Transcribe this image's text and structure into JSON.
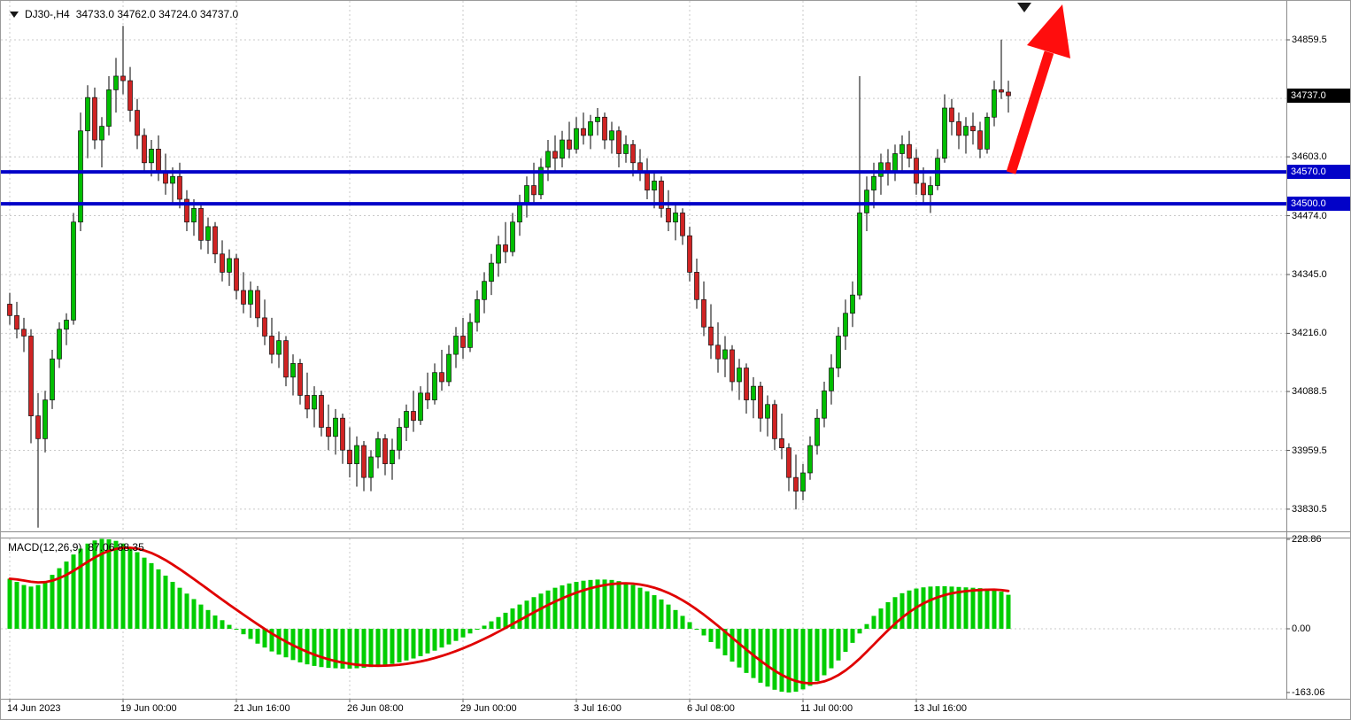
{
  "header": {
    "symbol_period": "DJ30-,H4",
    "ohlc_text": "34733.0 34762.0 34724.0 34737.0"
  },
  "indicator_label": {
    "name": "MACD(12,26,9)",
    "values": "87.06 88.35"
  },
  "colors": {
    "grid": "#C9C9C9",
    "separator": "#8A8A8A",
    "arrow": "#FF0D0D",
    "badge_current_bg": "#000000",
    "level_badge_bg": "#0202C8",
    "axis_text": "#000000"
  },
  "price_axis": {
    "labels": [
      {
        "text": "34859.5",
        "value": 34859.5
      },
      {
        "text": "34603.0",
        "value": 34603.0
      },
      {
        "text": "34474.0",
        "value": 34474.0
      },
      {
        "text": "34345.0",
        "value": 34345.0
      },
      {
        "text": "34216.0",
        "value": 34216.0
      },
      {
        "text": "34088.5",
        "value": 34088.5
      },
      {
        "text": "33959.5",
        "value": 33959.5
      },
      {
        "text": "33830.5",
        "value": 33830.5
      }
    ],
    "badge_current": {
      "text": "34737.0",
      "value": 34737.0
    },
    "level_badges": [
      {
        "text": "34570.0",
        "value": 34570.0
      },
      {
        "text": "34500.0",
        "value": 34500.0
      }
    ]
  },
  "macd_axis": {
    "labels": [
      {
        "text": "228.86",
        "value": 228.86
      },
      {
        "text": "0.00",
        "value": 0
      },
      {
        "text": "-163.06",
        "value": -163.06
      }
    ]
  },
  "time_axis": {
    "labels": [
      {
        "text": "14 Jun 2023",
        "bar": 0
      },
      {
        "text": "19 Jun 00:00",
        "bar": 16
      },
      {
        "text": "21 Jun 16:00",
        "bar": 32
      },
      {
        "text": "26 Jun 08:00",
        "bar": 48
      },
      {
        "text": "29 Jun 00:00",
        "bar": 64
      },
      {
        "text": "3 Jul 16:00",
        "bar": 80
      },
      {
        "text": "6 Jul 08:00",
        "bar": 96
      },
      {
        "text": "11 Jul 00:00",
        "bar": 112
      },
      {
        "text": "13 Jul 16:00",
        "bar": 128
      }
    ]
  },
  "chart_data": [
    {
      "type": "candlestick",
      "symbol": "DJ30-",
      "timeframe": "H4",
      "ohlc_current": {
        "open": 34733.0,
        "high": 34762.0,
        "low": 34724.0,
        "close": 34737.0
      },
      "ylim": [
        33770,
        34910
      ],
      "grid": true,
      "y_tick_values": [
        34859.5,
        34731.0,
        34603.0,
        34474.0,
        34345.0,
        34216.0,
        34088.5,
        33959.5,
        33830.5
      ],
      "levels": [
        {
          "value": 34570.0,
          "color": "#0202C8"
        },
        {
          "value": 34500.0,
          "color": "#0202C8"
        }
      ],
      "annotations": [
        {
          "type": "arrow",
          "direction": "up",
          "color": "#FF0D0D",
          "anchor_price": 34570.0
        }
      ],
      "colors": {
        "up": "#00BE00",
        "down": "#D02323",
        "wick": "#000000"
      },
      "candles": [
        [
          34280,
          34305,
          34235,
          34255
        ],
        [
          34255,
          34285,
          34205,
          34225
        ],
        [
          34225,
          34250,
          34175,
          34210
        ],
        [
          34210,
          34225,
          33975,
          34035
        ],
        [
          34035,
          34085,
          33790,
          33985
        ],
        [
          33985,
          34090,
          33955,
          34070
        ],
        [
          34070,
          34180,
          34050,
          34160
        ],
        [
          34160,
          34240,
          34140,
          34225
        ],
        [
          34225,
          34260,
          34190,
          34245
        ],
        [
          34245,
          34480,
          34235,
          34460
        ],
        [
          34460,
          34700,
          34440,
          34660
        ],
        [
          34660,
          34760,
          34600,
          34733
        ],
        [
          34733,
          34755,
          34620,
          34640
        ],
        [
          34640,
          34690,
          34580,
          34670
        ],
        [
          34670,
          34780,
          34650,
          34750
        ],
        [
          34750,
          34820,
          34700,
          34780
        ],
        [
          34780,
          34890,
          34740,
          34770
        ],
        [
          34770,
          34800,
          34680,
          34705
        ],
        [
          34705,
          34730,
          34620,
          34650
        ],
        [
          34650,
          34665,
          34570,
          34590
        ],
        [
          34590,
          34640,
          34560,
          34620
        ],
        [
          34620,
          34650,
          34550,
          34570
        ],
        [
          34570,
          34610,
          34520,
          34545
        ],
        [
          34545,
          34580,
          34500,
          34560
        ],
        [
          34560,
          34590,
          34490,
          34510
        ],
        [
          34510,
          34530,
          34440,
          34460
        ],
        [
          34460,
          34510,
          34430,
          34490
        ],
        [
          34490,
          34500,
          34400,
          34420
        ],
        [
          34420,
          34470,
          34390,
          34450
        ],
        [
          34450,
          34460,
          34370,
          34390
        ],
        [
          34390,
          34420,
          34330,
          34350
        ],
        [
          34350,
          34400,
          34320,
          34380
        ],
        [
          34380,
          34390,
          34290,
          34310
        ],
        [
          34310,
          34350,
          34260,
          34280
        ],
        [
          34280,
          34330,
          34250,
          34310
        ],
        [
          34310,
          34320,
          34230,
          34250
        ],
        [
          34250,
          34290,
          34190,
          34210
        ],
        [
          34210,
          34250,
          34150,
          34170
        ],
        [
          34170,
          34220,
          34140,
          34200
        ],
        [
          34200,
          34210,
          34100,
          34120
        ],
        [
          34120,
          34170,
          34080,
          34150
        ],
        [
          34150,
          34160,
          34060,
          34080
        ],
        [
          34080,
          34130,
          34030,
          34050
        ],
        [
          34050,
          34100,
          34010,
          34080
        ],
        [
          34080,
          34090,
          33990,
          34010
        ],
        [
          34010,
          34060,
          33960,
          33990
        ],
        [
          33990,
          34050,
          33950,
          34030
        ],
        [
          34030,
          34040,
          33930,
          33960
        ],
        [
          33960,
          34010,
          33900,
          33930
        ],
        [
          33930,
          33990,
          33880,
          33970
        ],
        [
          33970,
          33980,
          33870,
          33900
        ],
        [
          33900,
          33960,
          33870,
          33945
        ],
        [
          33945,
          34000,
          33920,
          33985
        ],
        [
          33985,
          33995,
          33905,
          33930
        ],
        [
          33930,
          33985,
          33895,
          33960
        ],
        [
          33960,
          34030,
          33940,
          34010
        ],
        [
          34010,
          34060,
          33980,
          34045
        ],
        [
          34045,
          34090,
          34000,
          34025
        ],
        [
          34025,
          34100,
          34015,
          34085
        ],
        [
          34085,
          34130,
          34050,
          34070
        ],
        [
          34070,
          34150,
          34060,
          34130
        ],
        [
          34130,
          34180,
          34090,
          34110
        ],
        [
          34110,
          34190,
          34100,
          34170
        ],
        [
          34170,
          34230,
          34140,
          34210
        ],
        [
          34210,
          34250,
          34160,
          34185
        ],
        [
          34185,
          34260,
          34175,
          34240
        ],
        [
          34240,
          34310,
          34220,
          34290
        ],
        [
          34290,
          34350,
          34260,
          34330
        ],
        [
          34330,
          34390,
          34300,
          34370
        ],
        [
          34370,
          34430,
          34340,
          34410
        ],
        [
          34410,
          34460,
          34370,
          34395
        ],
        [
          34395,
          34480,
          34385,
          34460
        ],
        [
          34460,
          34520,
          34430,
          34500
        ],
        [
          34500,
          34560,
          34470,
          34540
        ],
        [
          34540,
          34590,
          34500,
          34520
        ],
        [
          34520,
          34600,
          34510,
          34580
        ],
        [
          34580,
          34640,
          34550,
          34615
        ],
        [
          34615,
          34650,
          34570,
          34600
        ],
        [
          34600,
          34660,
          34580,
          34640
        ],
        [
          34640,
          34680,
          34600,
          34620
        ],
        [
          34620,
          34690,
          34610,
          34665
        ],
        [
          34665,
          34700,
          34630,
          34650
        ],
        [
          34650,
          34695,
          34620,
          34680
        ],
        [
          34680,
          34710,
          34650,
          34690
        ],
        [
          34690,
          34700,
          34620,
          34640
        ],
        [
          34640,
          34680,
          34610,
          34660
        ],
        [
          34660,
          34670,
          34580,
          34610
        ],
        [
          34610,
          34650,
          34590,
          34630
        ],
        [
          34630,
          34640,
          34560,
          34590
        ],
        [
          34590,
          34620,
          34550,
          34570
        ],
        [
          34570,
          34600,
          34510,
          34530
        ],
        [
          34530,
          34570,
          34490,
          34550
        ],
        [
          34550,
          34560,
          34470,
          34490
        ],
        [
          34490,
          34530,
          34440,
          34460
        ],
        [
          34460,
          34500,
          34420,
          34480
        ],
        [
          34480,
          34490,
          34410,
          34430
        ],
        [
          34430,
          34450,
          34330,
          34350
        ],
        [
          34350,
          34380,
          34270,
          34290
        ],
        [
          34290,
          34330,
          34210,
          34230
        ],
        [
          34230,
          34280,
          34160,
          34190
        ],
        [
          34190,
          34240,
          34130,
          34160
        ],
        [
          34160,
          34210,
          34120,
          34180
        ],
        [
          34180,
          34190,
          34090,
          34110
        ],
        [
          34110,
          34160,
          34070,
          34140
        ],
        [
          34140,
          34150,
          34040,
          34070
        ],
        [
          34070,
          34120,
          34030,
          34100
        ],
        [
          34100,
          34110,
          34000,
          34030
        ],
        [
          34030,
          34080,
          33990,
          34060
        ],
        [
          34060,
          34070,
          33960,
          33985
        ],
        [
          33985,
          34040,
          33940,
          33965
        ],
        [
          33965,
          33975,
          33870,
          33900
        ],
        [
          33900,
          33950,
          33830,
          33870
        ],
        [
          33870,
          33930,
          33850,
          33910
        ],
        [
          33910,
          33990,
          33895,
          33970
        ],
        [
          33970,
          34050,
          33950,
          34030
        ],
        [
          34030,
          34110,
          34010,
          34090
        ],
        [
          34090,
          34170,
          34060,
          34140
        ],
        [
          34140,
          34230,
          34120,
          34210
        ],
        [
          34210,
          34290,
          34180,
          34260
        ],
        [
          34260,
          34330,
          34230,
          34300
        ],
        [
          34300,
          34780,
          34290,
          34480
        ],
        [
          34480,
          34560,
          34440,
          34530
        ],
        [
          34530,
          34590,
          34490,
          34560
        ],
        [
          34560,
          34610,
          34520,
          34590
        ],
        [
          34590,
          34620,
          34540,
          34570
        ],
        [
          34570,
          34630,
          34550,
          34610
        ],
        [
          34610,
          34650,
          34570,
          34630
        ],
        [
          34630,
          34660,
          34580,
          34600
        ],
        [
          34600,
          34620,
          34520,
          34545
        ],
        [
          34545,
          34580,
          34500,
          34520
        ],
        [
          34520,
          34560,
          34480,
          34540
        ],
        [
          34540,
          34620,
          34530,
          34600
        ],
        [
          34600,
          34740,
          34590,
          34710
        ],
        [
          34710,
          34730,
          34650,
          34680
        ],
        [
          34680,
          34700,
          34620,
          34650
        ],
        [
          34650,
          34690,
          34610,
          34670
        ],
        [
          34670,
          34700,
          34630,
          34660
        ],
        [
          34660,
          34680,
          34600,
          34620
        ],
        [
          34620,
          34700,
          34610,
          34690
        ],
        [
          34690,
          34770,
          34670,
          34750
        ],
        [
          34750,
          34860,
          34730,
          34745
        ],
        [
          34745,
          34770,
          34700,
          34737
        ]
      ]
    },
    {
      "type": "bar",
      "title": "MACD(12,26,9)",
      "current": 87.06,
      "bar_color": "#00CD00",
      "ylim": [
        -163.06,
        228.86
      ],
      "y_tick_values": [
        228.86,
        0,
        -163.06
      ],
      "signal": {
        "type": "ema",
        "period": 9,
        "color": "#E00000",
        "current": 88.35
      },
      "values": [
        128,
        120,
        112,
        108,
        112,
        122,
        138,
        155,
        172,
        190,
        205,
        218,
        226,
        230,
        229,
        225,
        218,
        208,
        196,
        182,
        168,
        152,
        136,
        120,
        105,
        90,
        76,
        62,
        48,
        34,
        22,
        10,
        -2,
        -14,
        -26,
        -38,
        -48,
        -58,
        -66,
        -73,
        -80,
        -86,
        -91,
        -95,
        -98,
        -100,
        -101,
        -102,
        -102,
        -101,
        -100,
        -98,
        -96,
        -93,
        -90,
        -86,
        -81,
        -76,
        -70,
        -63,
        -56,
        -48,
        -40,
        -31,
        -22,
        -12,
        -2,
        8,
        19,
        30,
        41,
        52,
        62,
        72,
        81,
        90,
        98,
        105,
        111,
        116,
        120,
        123,
        125,
        126,
        126,
        125,
        122,
        118,
        112,
        105,
        96,
        86,
        75,
        62,
        48,
        33,
        17,
        0,
        -17,
        -34,
        -51,
        -68,
        -84,
        -99,
        -113,
        -126,
        -138,
        -148,
        -156,
        -161,
        -163,
        -161,
        -155,
        -146,
        -134,
        -119,
        -101,
        -81,
        -59,
        -36,
        -12,
        12,
        33,
        52,
        68,
        81,
        91,
        98,
        103,
        106,
        108,
        109,
        109,
        108,
        107,
        106,
        105,
        104,
        103,
        101,
        95,
        87
      ]
    }
  ]
}
